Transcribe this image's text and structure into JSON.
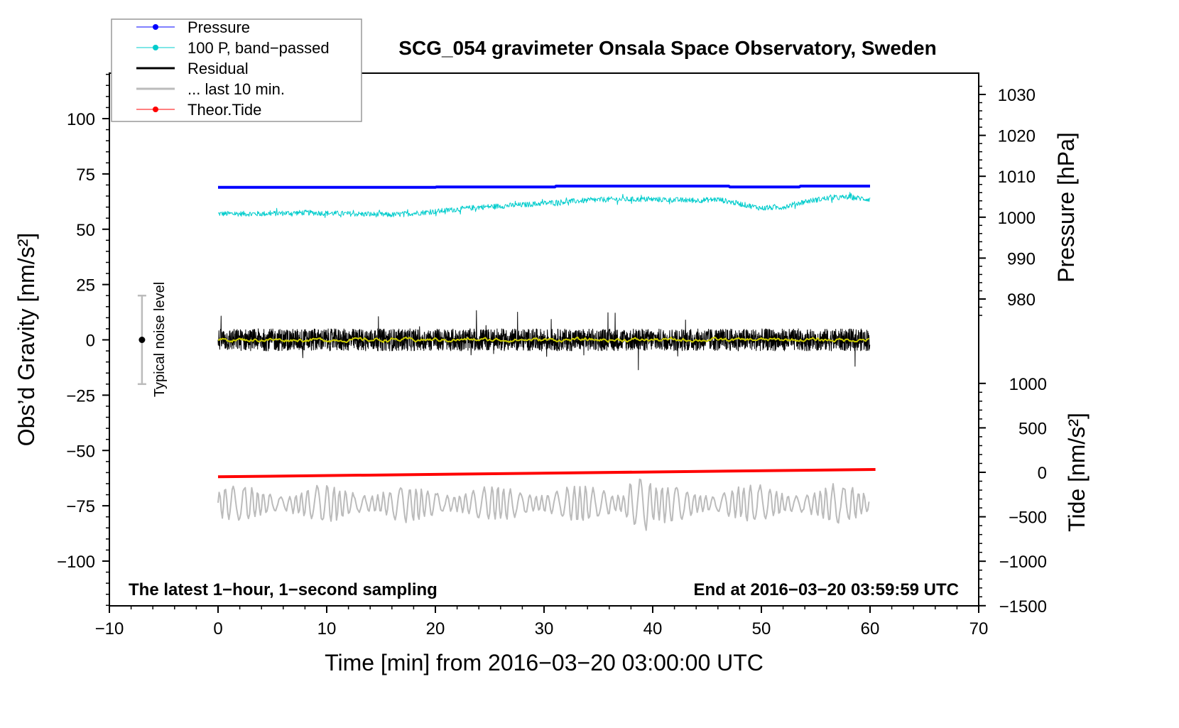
{
  "chart_data": {
    "type": "line",
    "title": "SCG_054 gravimeter Onsala Space Observatory, Sweden",
    "xlabel": "Time [min] from 2016−03−20 03:00:00 UTC",
    "ylabel": "Obs’d Gravity [nm/s²]",
    "ylabel_right_top": "Pressure [hPa]",
    "ylabel_right_bottom": "Tide [nm/s²]",
    "xlim": [
      -10,
      70
    ],
    "ylim": [
      -120,
      120
    ],
    "pressure_lim": [
      975,
      1030
    ],
    "tide_lim": [
      -1500,
      1000
    ],
    "x_ticks": [
      "−10",
      "0",
      "10",
      "20",
      "30",
      "40",
      "50",
      "60",
      "70"
    ],
    "x_tick_values": [
      -10,
      0,
      10,
      20,
      30,
      40,
      50,
      60,
      70
    ],
    "y_ticks": [
      "100",
      "75",
      "50",
      "25",
      "0",
      "−25",
      "−50",
      "−75",
      "−100"
    ],
    "y_tick_values": [
      100,
      75,
      50,
      25,
      0,
      -25,
      -50,
      -75,
      -100
    ],
    "pressure_ticks": [
      "1030",
      "1020",
      "1010",
      "1000",
      "990",
      "980"
    ],
    "pressure_tick_values": [
      1030,
      1020,
      1010,
      1000,
      990,
      980
    ],
    "tide_ticks": [
      "1000",
      "500",
      "0",
      "−500",
      "−1000",
      "−1500"
    ],
    "tide_tick_values": [
      1000,
      500,
      0,
      -500,
      -1000,
      -1500
    ],
    "annotation_left": "The latest 1−hour, 1−second sampling",
    "annotation_right": "End at 2016−03−20 03:59:59 UTC",
    "noise_label": "Typical noise level",
    "noise_level": {
      "x": -7,
      "center": 0,
      "half_range": 20
    },
    "legend": {
      "position": "top-left",
      "entries": [
        {
          "label": "Pressure",
          "color": "#0000ff",
          "marker": "dot"
        },
        {
          "label": "100 P, band−passed",
          "color": "#00cccc",
          "marker": "dot"
        },
        {
          "label": "Residual",
          "color": "#000000",
          "marker": "line"
        },
        {
          "label": "... last 10 min.",
          "color": "#bbbbbb",
          "marker": "line"
        },
        {
          "label": "Theor.Tide",
          "color": "#ff0000",
          "marker": "dot"
        }
      ]
    },
    "series": [
      {
        "name": "Pressure",
        "axis": "pressure",
        "color": "#0000ff",
        "x": [
          0,
          20,
          20.1,
          31,
          31.1,
          47,
          47.1,
          53.5,
          53.6,
          60
        ],
        "y": [
          1007.3,
          1007.3,
          1007.4,
          1007.4,
          1007.6,
          1007.6,
          1007.4,
          1007.4,
          1007.6,
          1007.6
        ]
      },
      {
        "name": "100 P, band−passed",
        "axis": "gravity",
        "color": "#00cccc",
        "x": [
          0,
          4,
          8,
          12,
          16,
          20,
          24,
          28,
          32,
          36,
          40,
          44,
          46,
          48,
          50,
          52,
          54,
          56,
          58,
          60
        ],
        "y": [
          57,
          57,
          57.5,
          57,
          56.5,
          58,
          60,
          61,
          62.5,
          63.5,
          63.5,
          63,
          63.5,
          61.5,
          59.5,
          60,
          62.5,
          64,
          64.5,
          63.5
        ],
        "noise_amplitude": 1.2
      },
      {
        "name": "Residual",
        "axis": "gravity",
        "color": "#000000",
        "x": [
          0,
          60
        ],
        "mean": 0,
        "noise_amplitude": 5,
        "max_spike": 14
      },
      {
        "name": "Residual smoothed",
        "axis": "gravity",
        "color": "#cccc00",
        "x": [
          0,
          60
        ],
        "mean": 0,
        "noise_amplitude": 1
      },
      {
        "name": "Theor.Tide",
        "axis": "tide",
        "color": "#ff0000",
        "x": [
          0,
          60.5
        ],
        "y": [
          -50,
          32
        ]
      },
      {
        "name": "... last 10 min.",
        "axis": "gravity",
        "color": "#bbbbbb",
        "x": [
          0,
          60
        ],
        "mean": -74,
        "noise_amplitude": 8,
        "peak_at": 39,
        "peak_amplitude": 13
      }
    ]
  }
}
